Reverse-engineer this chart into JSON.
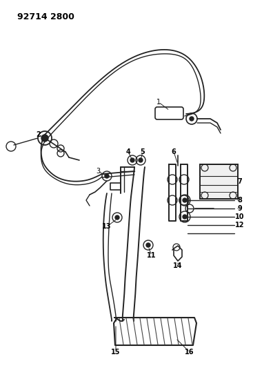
{
  "title": "92714 2800",
  "bg_color": "#ffffff",
  "line_color": "#222222",
  "label_color": "#000000",
  "fig_width": 3.96,
  "fig_height": 5.33,
  "dpi": 100
}
